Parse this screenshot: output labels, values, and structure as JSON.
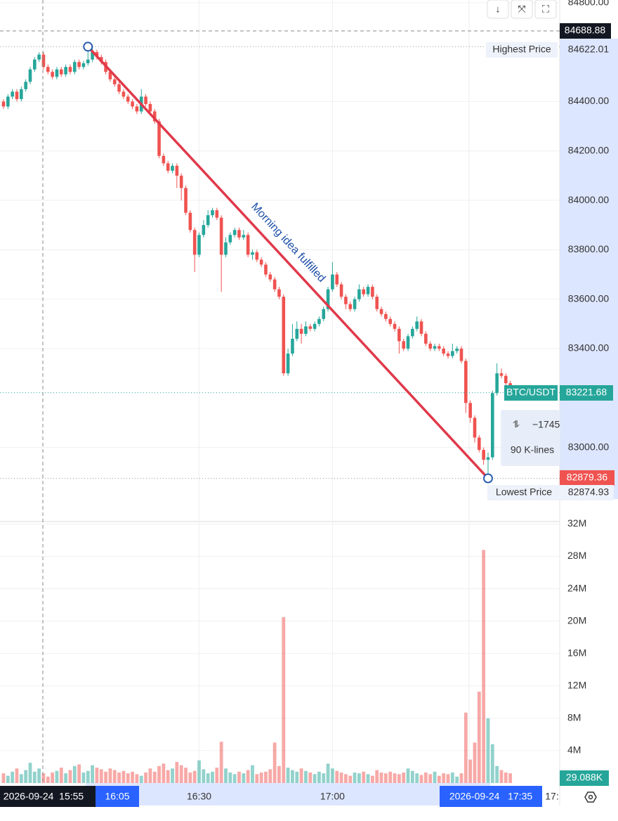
{
  "chart_data": {
    "type": "candlestick",
    "categories": [
      null,
      null,
      null,
      null,
      null,
      null,
      null,
      null,
      null,
      null,
      null,
      null,
      null,
      null,
      null,
      null,
      null,
      null,
      null,
      null,
      null,
      null,
      null,
      null,
      null,
      null,
      null,
      null,
      null,
      null,
      null,
      null,
      null,
      null,
      null,
      null,
      null,
      null,
      null,
      null,
      null,
      null,
      null,
      null,
      "16:30",
      null,
      null,
      null,
      null,
      null,
      null,
      null,
      null,
      null,
      null,
      null,
      null,
      null,
      null,
      null,
      null,
      null,
      null,
      null,
      null,
      null,
      null,
      null,
      null,
      null,
      null,
      null,
      null,
      null,
      "17:00",
      null,
      null,
      null,
      null,
      null,
      null,
      null,
      null,
      null,
      null,
      null,
      null,
      null,
      null,
      null,
      null,
      null,
      null,
      null,
      null,
      null,
      null,
      null,
      null,
      null,
      null,
      null,
      null,
      null,
      null,
      null,
      null,
      null,
      null,
      null,
      null,
      null,
      null,
      null,
      null
    ],
    "open": [
      84400,
      84380,
      84420,
      84440,
      84410,
      84450,
      84480,
      84530,
      84570,
      84590,
      84540,
      84520,
      84500,
      84530,
      84510,
      84540,
      84520,
      84560,
      84540,
      84555,
      84570,
      84600,
      84580,
      84560,
      84520,
      84490,
      84470,
      84440,
      84420,
      84400,
      84380,
      84360,
      84420,
      84390,
      84360,
      84320,
      84180,
      84150,
      84120,
      84140,
      84100,
      84050,
      83950,
      83880,
      83780,
      83860,
      83900,
      83940,
      83960,
      83930,
      83780,
      83830,
      83860,
      83880,
      83850,
      83860,
      83780,
      83790,
      83760,
      83740,
      83700,
      83680,
      83640,
      83610,
      83300,
      83380,
      83440,
      83480,
      83460,
      83490,
      83480,
      83500,
      83520,
      83560,
      83640,
      83700,
      83660,
      83610,
      83580,
      83560,
      83600,
      83640,
      83620,
      83650,
      83610,
      83560,
      83540,
      83520,
      83500,
      83480,
      83430,
      83400,
      83450,
      83480,
      83510,
      83460,
      83420,
      83400,
      83410,
      83400,
      83380,
      83370,
      83390,
      83400,
      83350,
      83180,
      83120,
      83040,
      82990,
      82950,
      82960,
      83220,
      83300,
      83290,
      83260
    ],
    "high": [
      84410,
      84430,
      84450,
      84450,
      84460,
      84490,
      84540,
      84580,
      84600,
      84600,
      84550,
      84530,
      84540,
      84540,
      84550,
      84550,
      84570,
      84570,
      84565,
      84622.01,
      84615,
      84610,
      84590,
      84570,
      84530,
      84500,
      84480,
      84450,
      84430,
      84410,
      84390,
      84450,
      84430,
      84400,
      84370,
      84330,
      84190,
      84160,
      84150,
      84150,
      84110,
      84060,
      83960,
      83890,
      83870,
      83920,
      83960,
      83970,
      83970,
      83940,
      83850,
      83870,
      83890,
      83890,
      83880,
      83870,
      83800,
      83800,
      83770,
      83750,
      83710,
      83690,
      83650,
      83620,
      83400,
      83500,
      83510,
      83500,
      83510,
      83500,
      83510,
      83530,
      83570,
      83650,
      83750,
      83710,
      83670,
      83620,
      83590,
      83610,
      83660,
      83650,
      83660,
      83660,
      83620,
      83570,
      83550,
      83530,
      83510,
      83490,
      83440,
      83460,
      83490,
      83530,
      83520,
      83470,
      83430,
      83420,
      83420,
      83410,
      83390,
      83420,
      83410,
      83410,
      83360,
      83190,
      83130,
      83050,
      83000,
      82980,
      83230,
      83340,
      83320,
      83300,
      83270
    ],
    "low": [
      84370,
      84370,
      84410,
      84400,
      84400,
      84440,
      84470,
      84520,
      84560,
      84530,
      84510,
      84490,
      84490,
      84500,
      84500,
      84510,
      84510,
      84530,
      84530,
      84545,
      84560,
      84570,
      84550,
      84510,
      84480,
      84460,
      84430,
      84410,
      84390,
      84370,
      84350,
      84350,
      84380,
      84350,
      84310,
      84170,
      84140,
      84110,
      84110,
      84050,
      84000,
      83940,
      83870,
      83710,
      83770,
      83850,
      83890,
      83930,
      83920,
      83630,
      83770,
      83820,
      83850,
      83840,
      83840,
      83770,
      83760,
      83750,
      83730,
      83690,
      83670,
      83630,
      83600,
      83290,
      83290,
      83370,
      83430,
      83420,
      83450,
      83470,
      83470,
      83490,
      83510,
      83550,
      83630,
      83650,
      83600,
      83560,
      83550,
      83550,
      83590,
      83610,
      83610,
      83600,
      83550,
      83530,
      83510,
      83490,
      83470,
      83380,
      83390,
      83390,
      83440,
      83470,
      83450,
      83410,
      83390,
      83390,
      83390,
      83370,
      83360,
      83360,
      83380,
      83340,
      83140,
      83100,
      83020,
      82980,
      82930,
      82874.93,
      82950,
      83210,
      83280,
      83250,
      83210
    ],
    "close": [
      84380,
      84420,
      84440,
      84410,
      84450,
      84480,
      84530,
      84570,
      84590,
      84540,
      84520,
      84500,
      84530,
      84510,
      84540,
      84520,
      84560,
      84540,
      84555,
      84570,
      84600,
      84580,
      84560,
      84520,
      84490,
      84470,
      84440,
      84420,
      84400,
      84380,
      84360,
      84420,
      84390,
      84360,
      84320,
      84180,
      84150,
      84120,
      84140,
      84100,
      84050,
      83950,
      83880,
      83780,
      83860,
      83900,
      83940,
      83960,
      83930,
      83780,
      83830,
      83860,
      83880,
      83850,
      83860,
      83780,
      83790,
      83760,
      83740,
      83700,
      83680,
      83640,
      83610,
      83300,
      83380,
      83440,
      83480,
      83460,
      83490,
      83480,
      83500,
      83520,
      83560,
      83640,
      83700,
      83660,
      83610,
      83580,
      83560,
      83600,
      83640,
      83620,
      83650,
      83610,
      83560,
      83540,
      83520,
      83500,
      83480,
      83430,
      83400,
      83450,
      83480,
      83510,
      83460,
      83420,
      83400,
      83410,
      83400,
      83380,
      83370,
      83390,
      83400,
      83350,
      83180,
      83120,
      83040,
      82990,
      82950,
      82960,
      83220,
      83300,
      83290,
      83260,
      83221.68
    ],
    "volume": [
      1.2,
      0.9,
      1.4,
      1.8,
      1.1,
      1.6,
      2.5,
      1.4,
      1.8,
      1.2,
      0.8,
      1.3,
      1.5,
      1.9,
      1.2,
      1.6,
      2.1,
      2.3,
      1.3,
      1.5,
      2.2,
      1.9,
      1.7,
      1.4,
      1.8,
      1.6,
      1.3,
      1.5,
      1.2,
      1.4,
      1.1,
      0.9,
      1.3,
      1.8,
      1.4,
      2.1,
      2.4,
      1.6,
      1.8,
      2.6,
      2.2,
      1.9,
      1.3,
      1.5,
      2.8,
      1.7,
      1.2,
      1.4,
      1.9,
      5.1,
      1.8,
      1.3,
      1.1,
      1.4,
      1.2,
      1.6,
      2.2,
      1.1,
      1.3,
      1.4,
      1.7,
      5.0,
      2.1,
      20.5,
      1.9,
      1.6,
      1.4,
      1.8,
      1.5,
      1.3,
      1.1,
      1.4,
      1.2,
      2.4,
      1.8,
      1.5,
      1.3,
      1.1,
      0.9,
      1.3,
      1.2,
      1.4,
      1.1,
      0.9,
      1.6,
      1.3,
      1.2,
      1.4,
      1.2,
      1.1,
      1.3,
      1.8,
      1.5,
      1.2,
      1.0,
      1.3,
      1.1,
      1.4,
      0.9,
      1.2,
      1.1,
      1.3,
      0.8,
      1.2,
      8.7,
      2.9,
      5.0,
      11.3,
      28.8,
      8.0,
      4.8,
      2.1,
      1.6,
      1.3,
      1.2
    ],
    "up_color": "#26a69a",
    "down_color": "#ef5350",
    "ylim": [
      82700,
      84811
    ],
    "yticks": [
      {
        "value": 84800,
        "label": "84800.00"
      },
      {
        "value": 84400,
        "label": "84400.00"
      },
      {
        "value": 84200,
        "label": "84200.00"
      },
      {
        "value": 84000,
        "label": "84000.00"
      },
      {
        "value": 83800,
        "label": "83800.00"
      },
      {
        "value": 83600,
        "label": "83600.00"
      },
      {
        "value": 83400,
        "label": "83400.00"
      },
      {
        "value": 83000,
        "label": "83000.00"
      }
    ],
    "y2lim": [
      0,
      32.3
    ],
    "y2ticks": [
      {
        "value": 32,
        "label": "32M"
      },
      {
        "value": 28,
        "label": "28M"
      },
      {
        "value": 24,
        "label": "24M"
      },
      {
        "value": 20,
        "label": "20M"
      },
      {
        "value": 16,
        "label": "16M"
      },
      {
        "value": 12,
        "label": "12M"
      },
      {
        "value": 8,
        "label": "8M"
      },
      {
        "value": 4,
        "label": "4M"
      }
    ],
    "grid": true,
    "annotation": "Morning idea fulfilled"
  },
  "ui": {
    "crosshair_price": "84688.88",
    "highest_label": "Highest Price",
    "highest_value": "84622.01",
    "symbol": "BTC/USDT",
    "last_price": "83221.68",
    "low_tag": "82879.36",
    "lowest_label": "Lowest Price",
    "lowest_value": "82874.93",
    "measure_change": "−1745",
    "measure_bars": "90 K-lines",
    "volume_tag": "29.088K",
    "time_cursor": "2026-09-24  15:55",
    "range_start": "16:05",
    "range_end": "2026-09-24   17:35",
    "time_cut": "17:",
    "buttons": [
      "↓",
      "⤧",
      "⛶"
    ]
  }
}
